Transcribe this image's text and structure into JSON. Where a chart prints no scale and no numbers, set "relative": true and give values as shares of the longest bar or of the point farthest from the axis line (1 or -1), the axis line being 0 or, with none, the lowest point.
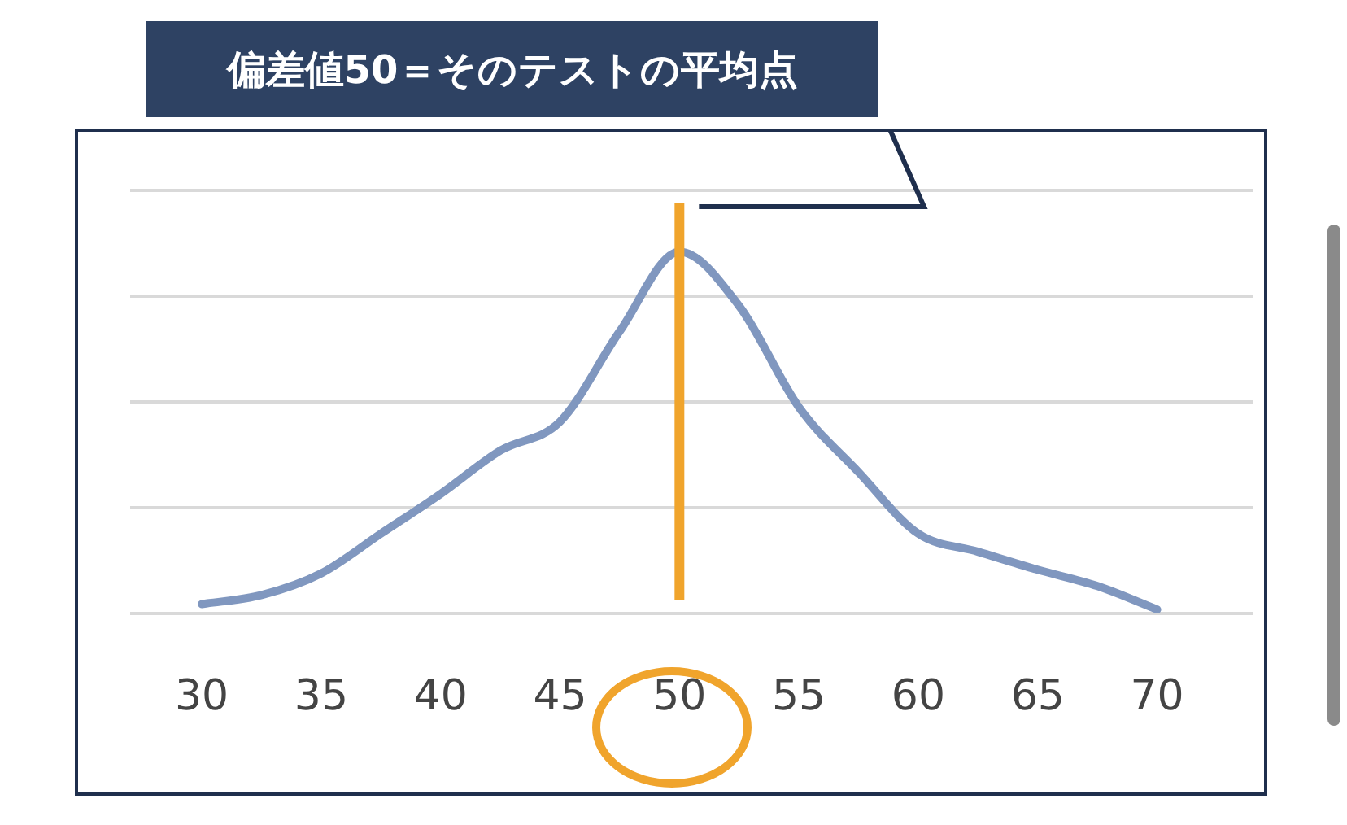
{
  "chart_data": {
    "type": "line",
    "relative": true,
    "x": [
      30,
      32.5,
      35,
      37.5,
      40,
      42.5,
      45,
      47.5,
      50,
      52.5,
      55,
      57.5,
      60,
      62.5,
      65,
      67.5,
      70
    ],
    "series": [
      {
        "color": "#8097bf",
        "values": [
          0.025,
          0.05,
          0.11,
          0.22,
          0.33,
          0.45,
          0.53,
          0.78,
          1,
          0.85,
          0.57,
          0.39,
          0.22,
          0.17,
          0.12,
          0.075,
          0.01
        ]
      }
    ],
    "xlim": [
      27,
      74
    ],
    "xticks": [
      30,
      35,
      40,
      45,
      50,
      55,
      60,
      65,
      70
    ],
    "ref_lines": [
      {
        "axis": "x",
        "value": 50,
        "color": "#f0a42c"
      }
    ],
    "annotations": [
      "偏差値50＝そのテストの平均点"
    ],
    "grid": "y",
    "marker": "none",
    "line_style": "solid"
  }
}
